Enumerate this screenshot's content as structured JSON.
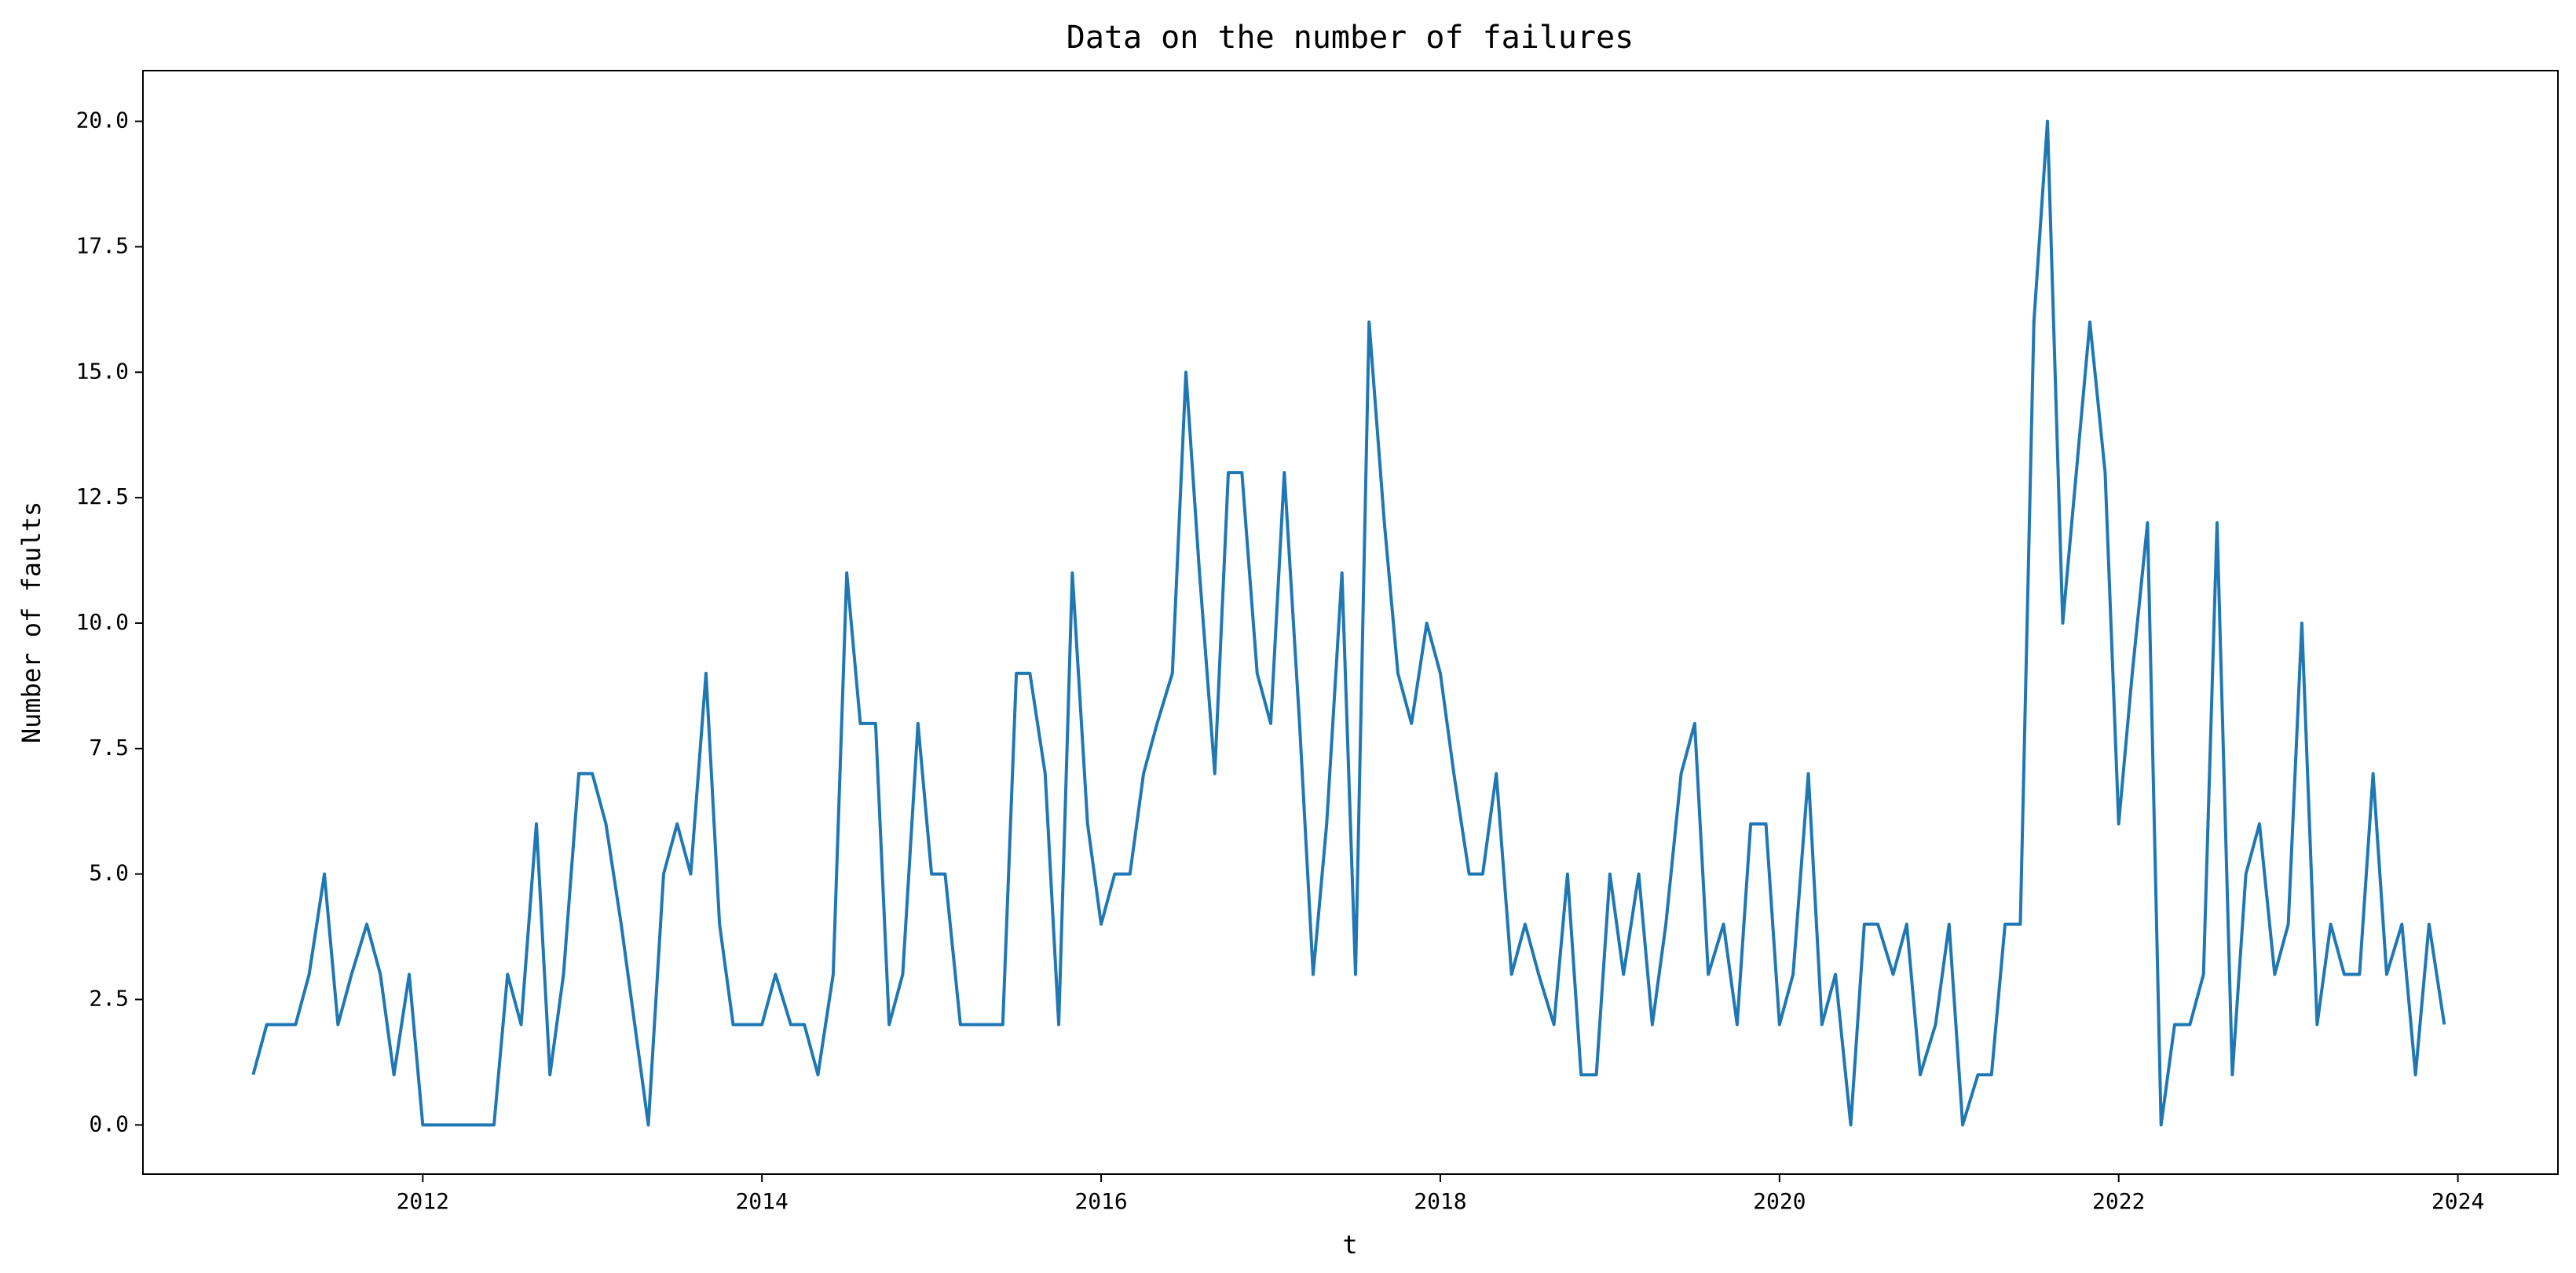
{
  "chart_data": {
    "type": "line",
    "title": "Data on the number of failures",
    "x_label": "t",
    "y_label": "Number of faults",
    "color": "#1f77b4",
    "x": [
      2011.0,
      2011.08,
      2011.17,
      2011.25,
      2011.33,
      2011.42,
      2011.5,
      2011.58,
      2011.67,
      2011.75,
      2011.83,
      2011.92,
      2012.0,
      2012.08,
      2012.17,
      2012.25,
      2012.33,
      2012.42,
      2012.5,
      2012.58,
      2012.67,
      2012.75,
      2012.83,
      2012.92,
      2013.0,
      2013.08,
      2013.17,
      2013.25,
      2013.33,
      2013.42,
      2013.5,
      2013.58,
      2013.67,
      2013.75,
      2013.83,
      2013.92,
      2014.0,
      2014.08,
      2014.17,
      2014.25,
      2014.33,
      2014.42,
      2014.5,
      2014.58,
      2014.67,
      2014.75,
      2014.83,
      2014.92,
      2015.0,
      2015.08,
      2015.17,
      2015.25,
      2015.33,
      2015.42,
      2015.5,
      2015.58,
      2015.67,
      2015.75,
      2015.83,
      2015.92,
      2016.0,
      2016.08,
      2016.17,
      2016.25,
      2016.33,
      2016.42,
      2016.5,
      2016.58,
      2016.67,
      2016.75,
      2016.83,
      2016.92,
      2017.0,
      2017.08,
      2017.17,
      2017.25,
      2017.33,
      2017.42,
      2017.5,
      2017.58,
      2017.67,
      2017.75,
      2017.83,
      2017.92,
      2018.0,
      2018.08,
      2018.17,
      2018.25,
      2018.33,
      2018.42,
      2018.5,
      2018.58,
      2018.67,
      2018.75,
      2018.83,
      2018.92,
      2019.0,
      2019.08,
      2019.17,
      2019.25,
      2019.33,
      2019.42,
      2019.5,
      2019.58,
      2019.67,
      2019.75,
      2019.83,
      2019.92,
      2020.0,
      2020.08,
      2020.17,
      2020.25,
      2020.33,
      2020.42,
      2020.5,
      2020.58,
      2020.67,
      2020.75,
      2020.83,
      2020.92,
      2021.0,
      2021.08,
      2021.17,
      2021.25,
      2021.33,
      2021.42,
      2021.5,
      2021.58,
      2021.67,
      2021.75,
      2021.83,
      2021.92,
      2022.0,
      2022.08,
      2022.17,
      2022.25,
      2022.33,
      2022.42,
      2022.5,
      2022.58,
      2022.67,
      2022.75,
      2022.83,
      2022.92,
      2023.0,
      2023.08,
      2023.17,
      2023.25,
      2023.33,
      2023.42,
      2023.5,
      2023.58,
      2023.67,
      2023.75,
      2023.83,
      2023.92
    ],
    "values": [
      1,
      2,
      2,
      2,
      3,
      5,
      2,
      3,
      4,
      3,
      1,
      3,
      0,
      0,
      0,
      0,
      0,
      0,
      3,
      2,
      6,
      1,
      3,
      7,
      7,
      6,
      4,
      2,
      0,
      5,
      6,
      5,
      9,
      4,
      2,
      2,
      2,
      3,
      2,
      2,
      1,
      3,
      11,
      8,
      8,
      2,
      3,
      8,
      5,
      5,
      2,
      2,
      2,
      2,
      9,
      9,
      7,
      2,
      11,
      6,
      4,
      5,
      5,
      7,
      8,
      9,
      15,
      11,
      7,
      13,
      13,
      9,
      8,
      13,
      8,
      3,
      6,
      11,
      3,
      16,
      12,
      9,
      8,
      10,
      9,
      7,
      5,
      5,
      7,
      3,
      4,
      3,
      2,
      5,
      1,
      1,
      5,
      3,
      5,
      2,
      4,
      7,
      8,
      3,
      4,
      2,
      6,
      6,
      2,
      3,
      7,
      2,
      3,
      0,
      4,
      4,
      3,
      4,
      1,
      2,
      4,
      0,
      1,
      1,
      4,
      4,
      16,
      20,
      10,
      13,
      16,
      13,
      6,
      9,
      12,
      0,
      2,
      2,
      3,
      12,
      1,
      5,
      6,
      3,
      4,
      10,
      2,
      4,
      3,
      3,
      7,
      3,
      4,
      1,
      4,
      2
    ],
    "xlim": [
      2010.35,
      2024.59
    ],
    "xticks": [
      2012,
      2014,
      2016,
      2018,
      2020,
      2022,
      2024
    ],
    "ylim": [
      -0.98,
      21.01
    ],
    "yticks": [
      {
        "value": 0,
        "label": "0.0"
      },
      {
        "value": 2.5,
        "label": "2.5"
      },
      {
        "value": 5,
        "label": "5.0"
      },
      {
        "value": 7.5,
        "label": "7.5"
      },
      {
        "value": 10,
        "label": "10.0"
      },
      {
        "value": 12.5,
        "label": "12.5"
      },
      {
        "value": 15,
        "label": "15.0"
      },
      {
        "value": 17.5,
        "label": "17.5"
      },
      {
        "value": 20,
        "label": "20.0"
      }
    ],
    "grid": false
  }
}
